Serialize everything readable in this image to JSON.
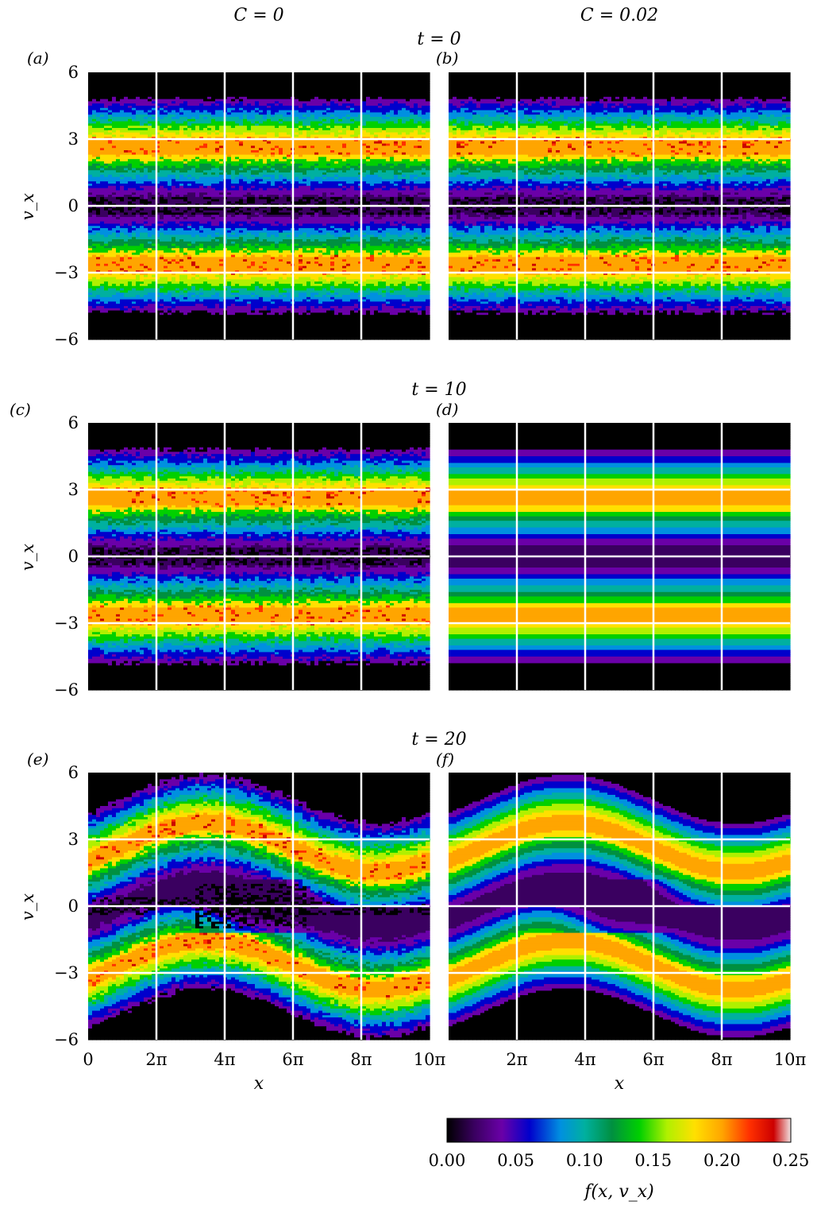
{
  "figure": {
    "column_titles": [
      "C = 0",
      "C = 0.02"
    ],
    "row_titles": [
      "t = 0",
      "t = 10",
      "t = 20"
    ],
    "panel_labels": [
      "(a)",
      "(b)",
      "(c)",
      "(d)",
      "(e)",
      "(f)"
    ],
    "y_axis_label": "v_x",
    "x_axis_label": "x",
    "colorbar_label": "f(x, v_x)"
  },
  "chart_data": {
    "type": "heatmap",
    "xlim": [
      0,
      31.4159
    ],
    "ylim": [
      -6,
      6
    ],
    "x_ticks": [
      0,
      6.2832,
      12.5664,
      18.8496,
      25.1327,
      31.4159
    ],
    "x_tick_labels": [
      "0",
      "2π",
      "4π",
      "6π",
      "8π",
      "10π"
    ],
    "y_ticks": [
      6,
      3,
      0,
      -3,
      -6
    ],
    "y_tick_labels": [
      "6",
      "3",
      "0",
      "−3",
      "−6"
    ],
    "grid": true,
    "colormap_stops": [
      "#000000",
      "#3a0060",
      "#6a00a8",
      "#0000cc",
      "#0090e0",
      "#00b0a0",
      "#009040",
      "#00d000",
      "#b0f000",
      "#ffe000",
      "#ffa500",
      "#ff3000",
      "#cc0000",
      "#f0e0e0"
    ],
    "colorbar": {
      "range": [
        0,
        0.25
      ],
      "ticks": [
        0,
        0.05,
        0.1,
        0.15,
        0.2,
        0.25
      ],
      "tick_labels": [
        "0.00",
        "0.05",
        "0.10",
        "0.15",
        "0.20",
        "0.25"
      ]
    },
    "panels": [
      {
        "label": "(a)",
        "C": 0,
        "t": 0,
        "noisy": true,
        "perturbation_amplitude": 0
      },
      {
        "label": "(b)",
        "C": 0.02,
        "t": 0,
        "noisy": true,
        "perturbation_amplitude": 0
      },
      {
        "label": "(c)",
        "C": 0,
        "t": 10,
        "noisy": true,
        "perturbation_amplitude": 0
      },
      {
        "label": "(d)",
        "C": 0.02,
        "t": 10,
        "noisy": false,
        "perturbation_amplitude": 0
      },
      {
        "label": "(e)",
        "C": 0,
        "t": 20,
        "noisy": true,
        "perturbation_amplitude": 1
      },
      {
        "label": "(f)",
        "C": 0.02,
        "t": 20,
        "noisy": false,
        "perturbation_amplitude": 1
      }
    ]
  }
}
